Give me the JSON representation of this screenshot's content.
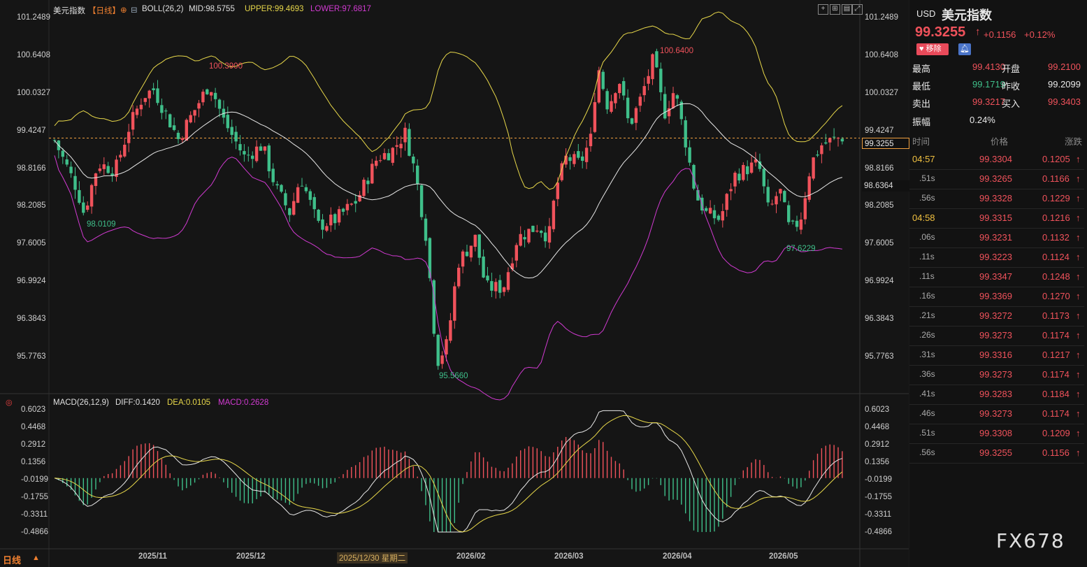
{
  "header": {
    "symbol_name": "美元指数",
    "period": "【日线】",
    "indicator": "BOLL(26,2)",
    "mid": "MID:98.5755",
    "upper": "UPPER:99.4693",
    "lower": "LOWER:97.6817"
  },
  "macd_header": {
    "name": "MACD(26,12,9)",
    "diff": "DIFF:0.1420",
    "dea": "DEA:0.0105",
    "macd": "MACD:0.2628"
  },
  "price_axis": [
    "101.2489",
    "100.6408",
    "100.0327",
    "99.4247",
    "98.8166",
    "98.2085",
    "97.6005",
    "96.9924",
    "96.3843",
    "95.7763"
  ],
  "macd_axis": [
    "0.6023",
    "0.4468",
    "0.2912",
    "0.1356",
    "-0.0199",
    "-0.1755",
    "-0.3311",
    "-0.4866"
  ],
  "x_axis": [
    "2025/11",
    "2025/12",
    "2025/12/30 星期二",
    "2026/02",
    "2026/03",
    "2026/04",
    "2026/05"
  ],
  "annotations": {
    "high1": "100.3900",
    "high2": "100.6400",
    "low1": "98.0109",
    "low2": "95.5660",
    "low3": "97.6229"
  },
  "current_price_tag": "99.3255",
  "mid_tag": "98.6364",
  "period_button": "日线",
  "watermark": "FX678",
  "quote": {
    "currency": "USD",
    "name": "美元指数",
    "price": "99.3255",
    "arrow": "↑",
    "change": "+0.1156",
    "change_pct": "+0.12%",
    "remove_label": "移除",
    "fields": [
      {
        "label": "最高",
        "value": "99.4130",
        "label2": "开盘",
        "value2": "99.2100"
      },
      {
        "label": "最低",
        "value": "99.1719",
        "label2": "昨收",
        "value2": "99.2099"
      },
      {
        "label": "卖出",
        "value": "99.3217",
        "label2": "买入",
        "value2": "99.3403"
      }
    ],
    "amplitude_label": "振幅",
    "amplitude_value": "0.24%"
  },
  "ticks": {
    "headers": [
      "时间",
      "价格",
      "涨跌"
    ],
    "rows": [
      {
        "time": "04:57",
        "price": "99.3304",
        "change": "0.1205"
      },
      {
        "time": ".51s",
        "price": "99.3265",
        "change": "0.1166"
      },
      {
        "time": ".56s",
        "price": "99.3328",
        "change": "0.1229"
      },
      {
        "time": "04:58",
        "price": "99.3315",
        "change": "0.1216"
      },
      {
        "time": ".06s",
        "price": "99.3231",
        "change": "0.1132"
      },
      {
        "time": ".11s",
        "price": "99.3223",
        "change": "0.1124"
      },
      {
        "time": ".11s",
        "price": "99.3347",
        "change": "0.1248"
      },
      {
        "time": ".16s",
        "price": "99.3369",
        "change": "0.1270"
      },
      {
        "time": ".21s",
        "price": "99.3272",
        "change": "0.1173"
      },
      {
        "time": ".26s",
        "price": "99.3273",
        "change": "0.1174"
      },
      {
        "time": ".31s",
        "price": "99.3316",
        "change": "0.1217"
      },
      {
        "time": ".36s",
        "price": "99.3273",
        "change": "0.1174"
      },
      {
        "time": ".41s",
        "price": "99.3283",
        "change": "0.1184"
      },
      {
        "time": ".46s",
        "price": "99.3273",
        "change": "0.1174"
      },
      {
        "time": ".51s",
        "price": "99.3308",
        "change": "0.1209"
      },
      {
        "time": ".56s",
        "price": "99.3255",
        "change": "0.1156"
      }
    ]
  },
  "colors": {
    "up": "#f0525b",
    "down": "#3fbf8a",
    "upper": "#e8d84a",
    "lower": "#d23ad2",
    "mid": "#e8e8e8",
    "accent": "#f08030"
  }
}
